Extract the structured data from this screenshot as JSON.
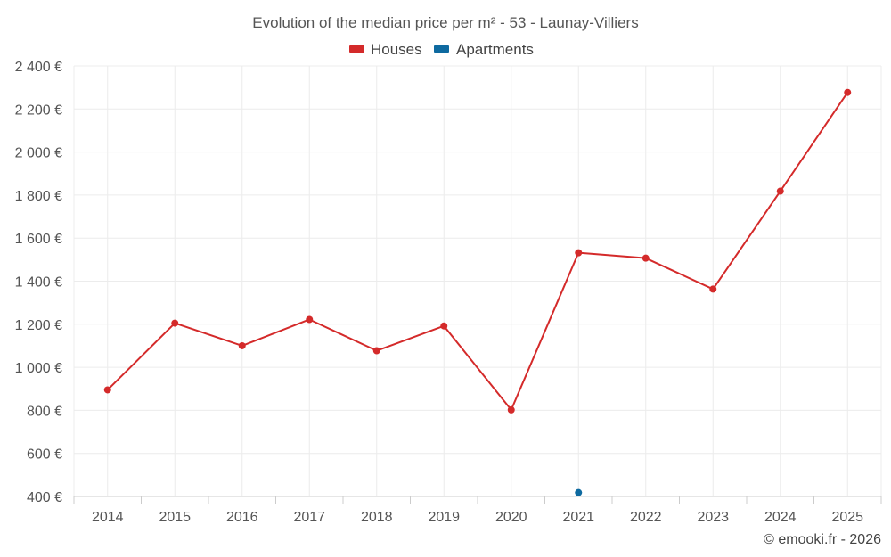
{
  "chart_data": {
    "type": "line",
    "title": "Evolution of the median price per m² - 53 - Launay-Villiers",
    "categories": [
      "2014",
      "2015",
      "2016",
      "2017",
      "2018",
      "2019",
      "2020",
      "2021",
      "2022",
      "2023",
      "2024",
      "2025"
    ],
    "ylim": [
      400,
      2400
    ],
    "yticks": [
      400,
      600,
      800,
      1000,
      1200,
      1400,
      1600,
      1800,
      2000,
      2200,
      2400
    ],
    "ytick_labels": [
      "400 €",
      "600 €",
      "800 €",
      "1 000 €",
      "1 200 €",
      "1 400 €",
      "1 600 €",
      "1 800 €",
      "2 000 €",
      "2 200 €",
      "2 400 €"
    ],
    "grid": true,
    "legend_position": "top-center",
    "series": [
      {
        "name": "Houses",
        "color": "#d42a2a",
        "values": [
          895,
          1205,
          1100,
          1222,
          1077,
          1192,
          802,
          1532,
          1507,
          1363,
          1818,
          2277
        ]
      },
      {
        "name": "Apartments",
        "color": "#0e6aa0",
        "values": [
          null,
          null,
          null,
          null,
          null,
          null,
          null,
          418,
          null,
          null,
          null,
          null
        ]
      }
    ],
    "xlabel": "",
    "ylabel": ""
  },
  "credit": "© emooki.fr - 2026"
}
